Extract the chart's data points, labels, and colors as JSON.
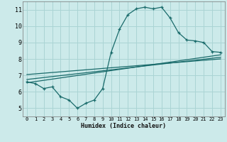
{
  "xlabel": "Humidex (Indice chaleur)",
  "background_color": "#cceaea",
  "grid_color": "#aad4d4",
  "line_color": "#1a6b6b",
  "xlim": [
    -0.5,
    23.5
  ],
  "ylim": [
    4.5,
    11.5
  ],
  "xticks": [
    0,
    1,
    2,
    3,
    4,
    5,
    6,
    7,
    8,
    9,
    10,
    11,
    12,
    13,
    14,
    15,
    16,
    17,
    18,
    19,
    20,
    21,
    22,
    23
  ],
  "yticks": [
    5,
    6,
    7,
    8,
    9,
    10,
    11
  ],
  "line1_x": [
    0,
    1,
    2,
    3,
    4,
    5,
    6,
    7,
    8,
    9,
    10,
    11,
    12,
    13,
    14,
    15,
    16,
    17,
    18,
    19,
    20,
    21,
    22,
    23
  ],
  "line1_y": [
    6.6,
    6.5,
    6.2,
    6.3,
    5.7,
    5.5,
    5.0,
    5.3,
    5.5,
    6.2,
    8.4,
    9.8,
    10.7,
    11.05,
    11.15,
    11.05,
    11.15,
    10.5,
    9.6,
    9.15,
    9.1,
    9.0,
    8.45,
    8.4
  ],
  "line2_x": [
    0,
    23
  ],
  "line2_y": [
    6.55,
    8.25
  ],
  "line3_x": [
    0,
    23
  ],
  "line3_y": [
    6.75,
    8.1
  ],
  "line4_x": [
    0,
    23
  ],
  "line4_y": [
    7.05,
    8.0
  ]
}
